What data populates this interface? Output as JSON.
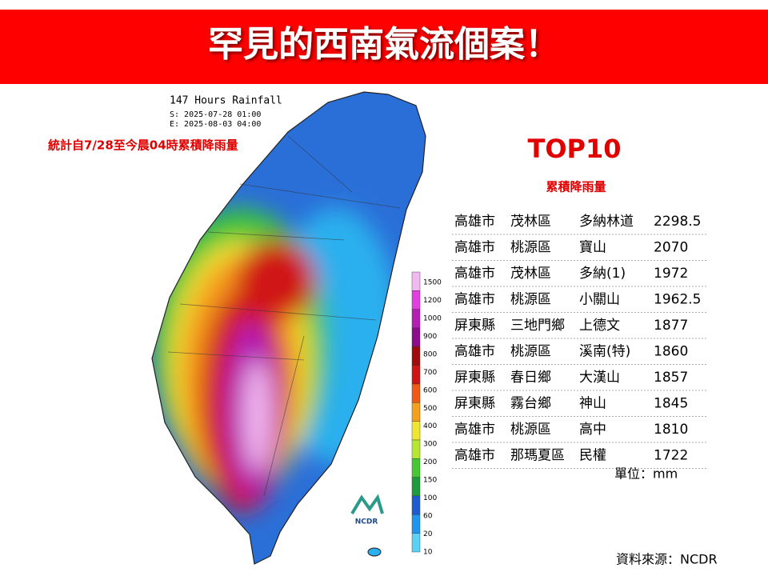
{
  "header": {
    "title": "罕見的西南氣流個案！"
  },
  "map": {
    "title": "147 Hours Rainfall",
    "start": "S: 2025-07-28 01:00",
    "end": "E: 2025-08-03 04:00",
    "note": "統計自7/28至今晨04時累積降雨量",
    "logo": "NCDR"
  },
  "legend": {
    "labels": [
      "1500",
      "1200",
      "1000",
      "900",
      "800",
      "700",
      "600",
      "500",
      "400",
      "300",
      "200",
      "150",
      "100",
      "60",
      "20",
      "10"
    ],
    "colors": [
      "#f2b8f0",
      "#e23ee0",
      "#b41eb4",
      "#8c0c8c",
      "#a00a0a",
      "#d01414",
      "#f05a14",
      "#f5a01e",
      "#f0e632",
      "#b4e632",
      "#46c832",
      "#1e9b3c",
      "#1e5ad2",
      "#1e96f0",
      "#5ad2f5"
    ]
  },
  "table": {
    "title": "TOP10",
    "subtitle": "累積降雨量",
    "rows": [
      [
        "高雄市",
        "茂林區",
        "多納林道",
        "2298.5"
      ],
      [
        "高雄市",
        "桃源區",
        "寶山",
        "2070"
      ],
      [
        "高雄市",
        "茂林區",
        "多納(1)",
        "1972"
      ],
      [
        "高雄市",
        "桃源區",
        "小關山",
        "1962.5"
      ],
      [
        "屏東縣",
        "三地門鄉",
        "上德文",
        "1877"
      ],
      [
        "高雄市",
        "桃源區",
        "溪南(特)",
        "1860"
      ],
      [
        "屏東縣",
        "春日鄉",
        "大漢山",
        "1857"
      ],
      [
        "屏東縣",
        "霧台鄉",
        "神山",
        "1845"
      ],
      [
        "高雄市",
        "桃源區",
        "高中",
        "1810"
      ],
      [
        "高雄市",
        "那瑪夏區",
        "民權",
        "1722"
      ]
    ],
    "unit": "單位：mm"
  },
  "footer": {
    "source": "資料來源：NCDR"
  }
}
